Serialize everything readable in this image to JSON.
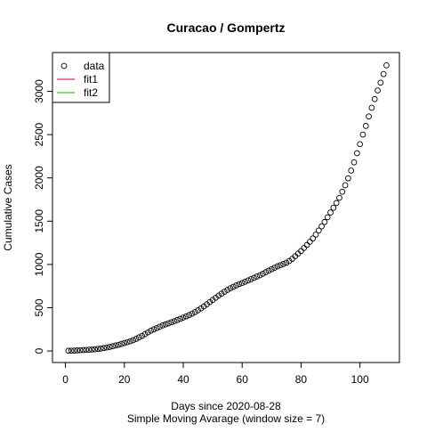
{
  "chart_data": {
    "type": "scatter",
    "title": "Curacao / Gompertz",
    "xlabel": "Days since 2020-08-28",
    "xlabel2": "Simple Moving Avarage (window size = 7)",
    "ylabel": "Cumulative Cases",
    "xlim": [
      -4.4,
      113.4
    ],
    "ylim": [
      -133,
      3448
    ],
    "x_ticks": [
      0,
      20,
      40,
      60,
      80,
      100
    ],
    "y_ticks": [
      0,
      500,
      1000,
      1500,
      2000,
      2500,
      3000
    ],
    "grid": false,
    "legend": {
      "position": "top-left",
      "entries": [
        {
          "label": "data",
          "kind": "point",
          "color": "#000000"
        },
        {
          "label": "fit1",
          "kind": "line",
          "color": "#DF536B"
        },
        {
          "label": "fit2",
          "kind": "line",
          "color": "#61D04F"
        }
      ]
    },
    "series": [
      {
        "name": "data",
        "x": [
          1,
          2,
          3,
          4,
          5,
          6,
          7,
          8,
          9,
          10,
          11,
          12,
          13,
          14,
          15,
          16,
          17,
          18,
          19,
          20,
          21,
          22,
          23,
          24,
          25,
          26,
          27,
          28,
          29,
          30,
          31,
          32,
          33,
          34,
          35,
          36,
          37,
          38,
          39,
          40,
          41,
          42,
          43,
          44,
          45,
          46,
          47,
          48,
          49,
          50,
          51,
          52,
          53,
          54,
          55,
          56,
          57,
          58,
          59,
          60,
          61,
          62,
          63,
          64,
          65,
          66,
          67,
          68,
          69,
          70,
          71,
          72,
          73,
          74,
          75,
          76,
          77,
          78,
          79,
          80,
          81,
          82,
          83,
          84,
          85,
          86,
          87,
          88,
          89,
          90,
          91,
          92,
          93,
          94,
          95,
          96,
          97,
          98,
          99,
          100,
          101,
          102,
          103,
          104,
          105,
          106,
          107,
          108,
          109
        ],
        "y": [
          3,
          4,
          5,
          7,
          9,
          11,
          13,
          15,
          17,
          20,
          24,
          28,
          34,
          40,
          47,
          55,
          64,
          72,
          82,
          92,
          102,
          112,
          125,
          140,
          158,
          175,
          195,
          215,
          235,
          250,
          265,
          280,
          295,
          308,
          320,
          332,
          345,
          358,
          372,
          386,
          400,
          415,
          432,
          450,
          470,
          492,
          515,
          540,
          565,
          590,
          615,
          640,
          662,
          685,
          705,
          725,
          742,
          758,
          772,
          786,
          800,
          815,
          830,
          845,
          860,
          875,
          892,
          910,
          928,
          945,
          962,
          978,
          992,
          1005,
          1020,
          1040,
          1065,
          1095,
          1125,
          1155,
          1190,
          1225,
          1262,
          1300,
          1345,
          1392,
          1440,
          1490,
          1545,
          1600,
          1655,
          1710,
          1770,
          1840,
          1915,
          1995,
          2085,
          2180,
          2285,
          2390,
          2500,
          2600,
          2710,
          2810,
          2910,
          3010,
          3100,
          3200,
          3300
        ]
      }
    ]
  }
}
